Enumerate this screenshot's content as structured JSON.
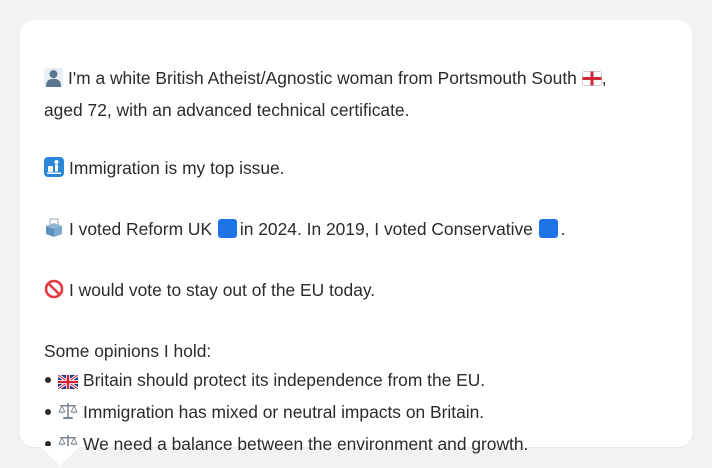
{
  "profile": {
    "intro_line1": "I'm a white British Atheist/Agnostic woman from Portsmouth South",
    "intro_comma": ",",
    "intro_line2": "aged 72, with an advanced technical certificate.",
    "issue_text": "Immigration is my top issue.",
    "vote_text_a": "I voted Reform UK",
    "vote_text_b": "in 2024. In 2019, I voted Conservative",
    "vote_text_c": ".",
    "eu_text": "I would vote to stay out of the EU today.",
    "opinions_header": "Some opinions I hold:",
    "opinions": [
      "Britain should protect its independence from the EU.",
      "Immigration has mixed or neutral impacts on Britain.",
      "We need a balance between the environment and growth."
    ]
  },
  "colors": {
    "page_background": "#f1f2f4",
    "bubble_background": "#ffffff",
    "text": "#2b2b2b",
    "reform_uk_square": "#1e74e6",
    "conservative_square": "#1e74e6"
  },
  "icons": {
    "intro": "person-silhouette-icon",
    "region_flag": "england-flag-icon",
    "issue": "passport-control-icon",
    "vote": "ballot-box-icon",
    "eu": "prohibited-icon",
    "opinion_1": "uk-flag-icon",
    "opinion_2": "balance-scale-icon",
    "opinion_3": "balance-scale-icon"
  }
}
